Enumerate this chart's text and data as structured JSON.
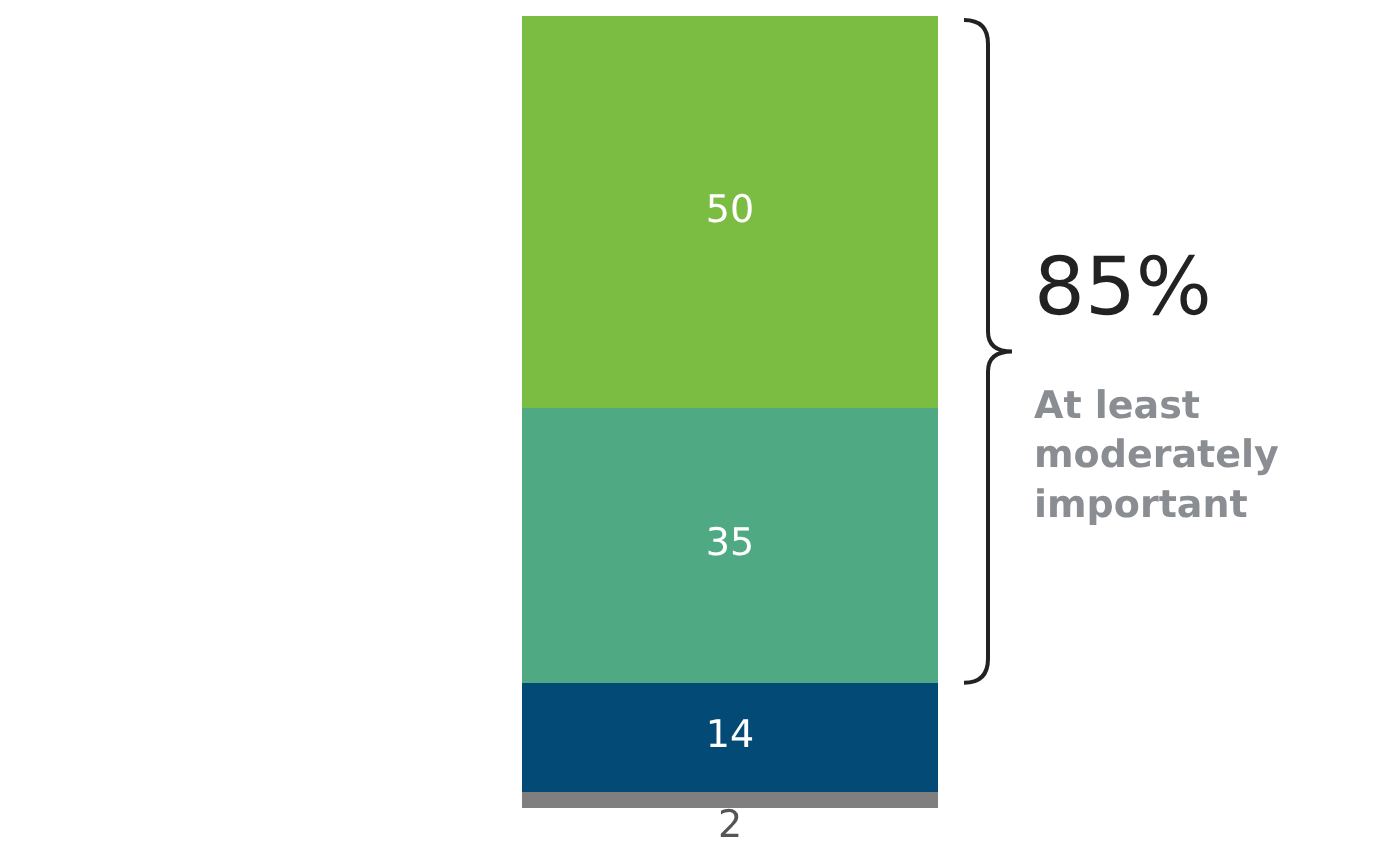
{
  "chart_data": {
    "type": "bar",
    "stacked": true,
    "data_labels": true,
    "categories": [
      null
    ],
    "series": [
      {
        "color": "#7f7f7f",
        "values": [
          2
        ]
      },
      {
        "color": "#034a76",
        "values": [
          14
        ]
      },
      {
        "color": "#4faa84",
        "values": [
          35
        ]
      },
      {
        "color": "#7bbd42",
        "values": [
          50
        ]
      }
    ],
    "annotations": [
      "85%",
      "At least moderately important"
    ]
  }
}
